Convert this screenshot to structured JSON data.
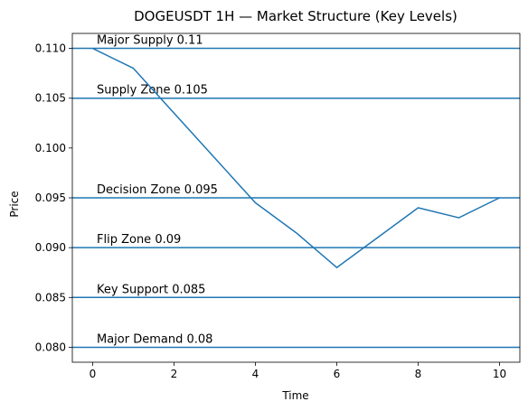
{
  "chart_data": {
    "type": "line",
    "title": "DOGEUSDT 1H — Market Structure (Key Levels)",
    "xlabel": "Time",
    "ylabel": "Price",
    "xlim": [
      -0.5,
      10.5
    ],
    "ylim": [
      0.0785,
      0.1115
    ],
    "x_ticks": [
      0,
      2,
      4,
      6,
      8,
      10
    ],
    "x_tick_labels": [
      "0",
      "2",
      "4",
      "6",
      "8",
      "10"
    ],
    "y_ticks": [
      0.08,
      0.085,
      0.09,
      0.095,
      0.1,
      0.105,
      0.11
    ],
    "y_tick_labels": [
      "0.080",
      "0.085",
      "0.090",
      "0.095",
      "0.100",
      "0.105",
      "0.110"
    ],
    "grid": false,
    "colors": {
      "line": "#1f77b4",
      "level": "#1f77b4",
      "axes": "#000000"
    },
    "series": [
      {
        "x": [
          0,
          1,
          2,
          3,
          4,
          5,
          6,
          7,
          8,
          9,
          10
        ],
        "values": [
          0.11,
          0.108,
          0.1035,
          0.099,
          0.0945,
          0.0915,
          0.088,
          0.091,
          0.094,
          0.093,
          0.095
        ]
      }
    ],
    "levels": [
      {
        "value": 0.11,
        "label": "Major Supply 0.11"
      },
      {
        "value": 0.105,
        "label": "Supply Zone 0.105"
      },
      {
        "value": 0.095,
        "label": "Decision Zone 0.095"
      },
      {
        "value": 0.09,
        "label": "Flip Zone 0.09"
      },
      {
        "value": 0.085,
        "label": "Key Support 0.085"
      },
      {
        "value": 0.08,
        "label": "Major Demand 0.08"
      }
    ],
    "level_label_x": 0.1
  }
}
